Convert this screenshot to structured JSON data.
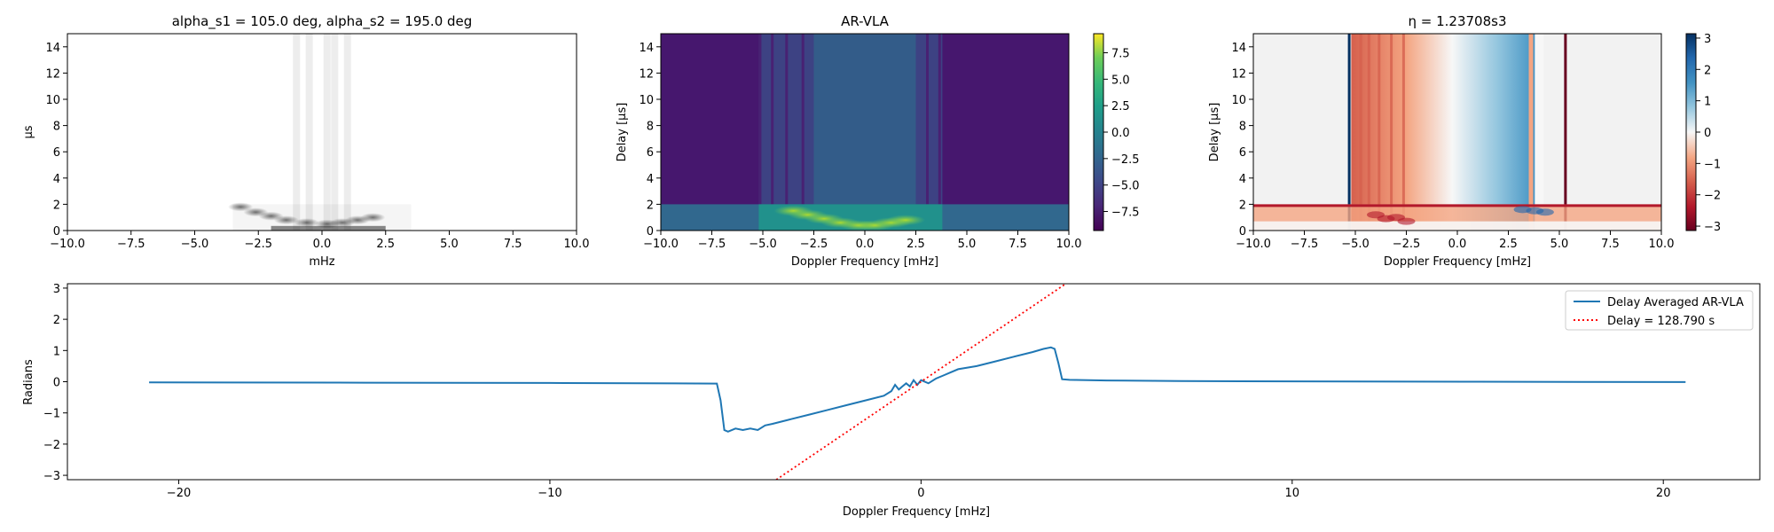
{
  "chart_data": [
    {
      "type": "heatmap",
      "title": "alpha_s1 = 105.0 deg, alpha_s2 = 195.0 deg",
      "xlabel": "mHz",
      "ylabel": "μs",
      "xlim": [
        -10,
        10
      ],
      "ylim": [
        0,
        15
      ],
      "xticks": [
        "−10.0",
        "−7.5",
        "−5.0",
        "−2.5",
        "0.0",
        "2.5",
        "5.0",
        "7.5",
        "10.0"
      ],
      "yticks": [
        "0",
        "2",
        "4",
        "6",
        "8",
        "10",
        "12",
        "14"
      ],
      "colormap": "gray_r",
      "features": {
        "vertical_streaks_x": [
          -1.0,
          -0.5,
          0.2,
          0.5,
          1.0
        ],
        "blobs": [
          {
            "x": -3.2,
            "y": 1.8
          },
          {
            "x": -2.6,
            "y": 1.4
          },
          {
            "x": -2.0,
            "y": 1.1
          },
          {
            "x": -1.4,
            "y": 0.8
          },
          {
            "x": -0.6,
            "y": 0.6
          },
          {
            "x": 0.2,
            "y": 0.5
          },
          {
            "x": 0.8,
            "y": 0.6
          },
          {
            "x": 1.4,
            "y": 0.8
          },
          {
            "x": 2.0,
            "y": 1.0
          }
        ]
      },
      "grid": false
    },
    {
      "type": "heatmap",
      "title": "AR-VLA",
      "xlabel": "Doppler Frequency [mHz]",
      "ylabel": "Delay [μs]",
      "xlim": [
        -10,
        10
      ],
      "ylim": [
        0,
        15
      ],
      "xticks": [
        "−10.0",
        "−7.5",
        "−5.0",
        "−2.5",
        "0.0",
        "2.5",
        "5.0",
        "7.5",
        "10.0"
      ],
      "yticks": [
        "0",
        "2",
        "4",
        "6",
        "8",
        "10",
        "12",
        "14"
      ],
      "colormap": "viridis",
      "colorbar": {
        "range": [
          -9.3,
          9.3
        ],
        "ticks": [
          "7.5",
          "5.0",
          "2.5",
          "0.0",
          "−2.5",
          "−5.0",
          "−7.5"
        ],
        "tick_values": [
          7.5,
          5.0,
          2.5,
          0.0,
          -2.5,
          -5.0,
          -7.5
        ]
      },
      "features": {
        "band_delay_max": 2.0,
        "band_value": -3.5,
        "background_value": -8.5,
        "center_band_x": [
          -5.2,
          3.8
        ],
        "center_band_value": -4.5
      },
      "grid": false
    },
    {
      "type": "heatmap",
      "title": "η = 1.23708s3",
      "xlabel": "Doppler Frequency [mHz]",
      "ylabel": "Delay [μs]",
      "xlim": [
        -10,
        10
      ],
      "ylim": [
        0,
        15
      ],
      "xticks": [
        "−10.0",
        "−7.5",
        "−5.0",
        "−2.5",
        "0.0",
        "2.5",
        "5.0",
        "7.5",
        "10.0"
      ],
      "yticks": [
        "0",
        "2",
        "4",
        "6",
        "8",
        "10",
        "12",
        "14"
      ],
      "colormap": "RdBu",
      "colorbar": {
        "range": [
          -3.14,
          3.14
        ],
        "ticks": [
          "3",
          "2",
          "1",
          "0",
          "−1",
          "−2",
          "−3"
        ],
        "tick_values": [
          3,
          2,
          1,
          0,
          -1,
          -2,
          -3
        ]
      },
      "features": {
        "band_delay_max": 2.0,
        "dark_lines_x": [
          -5.3,
          5.3
        ],
        "phase_slope_range": [
          -5.2,
          3.8
        ]
      },
      "grid": false
    },
    {
      "type": "line",
      "title": "",
      "xlabel": "Doppler Frequency [mHz]",
      "ylabel": "Radians",
      "xlim": [
        -23.0,
        22.6
      ],
      "ylim": [
        -3.14,
        3.14
      ],
      "xticks": [
        "−20",
        "−10",
        "0",
        "10",
        "20"
      ],
      "xtick_values": [
        -20,
        -10,
        0,
        10,
        20
      ],
      "yticks": [
        "3",
        "2",
        "1",
        "0",
        "−1",
        "−2",
        "−3"
      ],
      "ytick_values": [
        3,
        2,
        1,
        0,
        -1,
        -2,
        -3
      ],
      "legend": "top-right",
      "series": [
        {
          "name": "Delay Averaged  AR-VLA",
          "color": "#1f77b4",
          "style": "solid",
          "x": [
            -20.8,
            -15,
            -10,
            -5.5,
            -5.4,
            -5.3,
            -5.2,
            -5.0,
            -4.8,
            -4.6,
            -4.4,
            -4.2,
            -4.0,
            -3.5,
            -3.0,
            -2.5,
            -2.0,
            -1.5,
            -1.0,
            -0.8,
            -0.7,
            -0.6,
            -0.5,
            -0.4,
            -0.3,
            -0.2,
            -0.1,
            0.0,
            0.2,
            0.4,
            0.6,
            0.8,
            1.0,
            1.5,
            2.0,
            2.5,
            3.0,
            3.3,
            3.5,
            3.6,
            3.7,
            3.8,
            4.0,
            4.5,
            5.0,
            7.0,
            10.0,
            15.0,
            20.6
          ],
          "y": [
            -0.02,
            -0.03,
            -0.04,
            -0.06,
            -0.6,
            -1.55,
            -1.6,
            -1.5,
            -1.55,
            -1.5,
            -1.55,
            -1.4,
            -1.35,
            -1.2,
            -1.05,
            -0.9,
            -0.75,
            -0.6,
            -0.45,
            -0.3,
            -0.1,
            -0.25,
            -0.15,
            -0.05,
            -0.15,
            0.05,
            -0.1,
            0.05,
            -0.05,
            0.1,
            0.2,
            0.3,
            0.4,
            0.5,
            0.65,
            0.8,
            0.95,
            1.05,
            1.1,
            1.05,
            0.6,
            0.08,
            0.06,
            0.05,
            0.04,
            0.02,
            0.01,
            0.0,
            -0.01
          ]
        },
        {
          "name": "Delay = 128.790 s",
          "color": "#ff0000",
          "style": "dotted",
          "x": [
            -3.9,
            3.9
          ],
          "y": [
            -3.14,
            3.14
          ]
        }
      ],
      "grid": false
    }
  ]
}
